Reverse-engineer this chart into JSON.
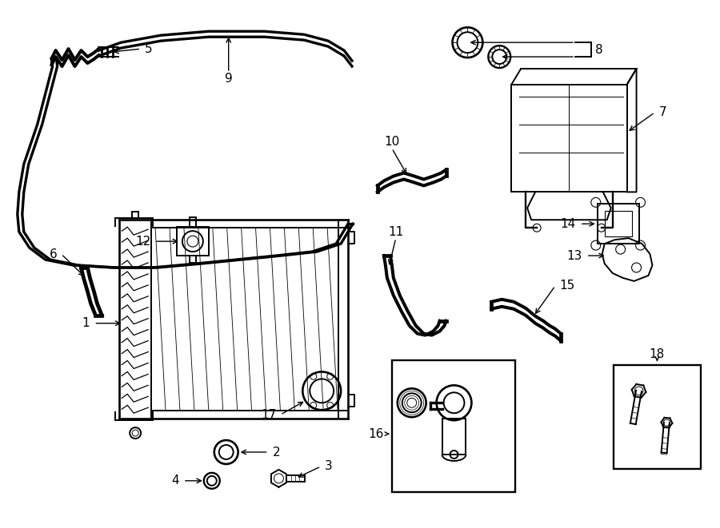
{
  "bg": "#ffffff",
  "lc": "#000000",
  "lw": 1.4,
  "fig_w": 9.0,
  "fig_h": 6.61,
  "dpi": 100
}
